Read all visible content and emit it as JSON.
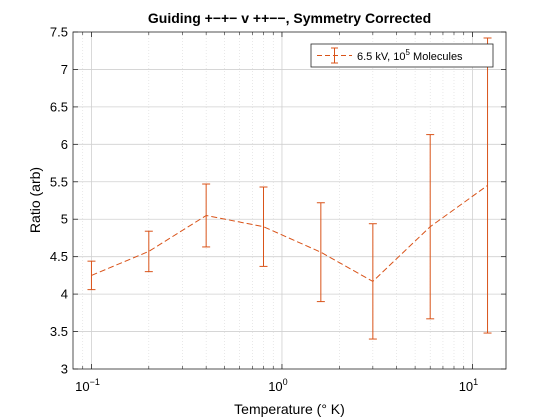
{
  "chart_data": {
    "type": "line",
    "title": "Guiding +−+− v ++−−, Symmetry Corrected",
    "xlabel": "Temperature (° K)",
    "ylabel": "Ratio (arb)",
    "xscale": "log",
    "xlim": [
      0.08,
      15
    ],
    "ylim": [
      3,
      7.5
    ],
    "yticks": [
      "3",
      "3.5",
      "4",
      "4.5",
      "5",
      "5.5",
      "6",
      "6.5",
      "7",
      "7.5"
    ],
    "xtick_labels": [
      {
        "base": "10",
        "exp": "−1",
        "value": 0.1
      },
      {
        "base": "10",
        "exp": "0",
        "value": 1
      },
      {
        "base": "10",
        "exp": "1",
        "value": 10
      }
    ],
    "grid": true,
    "legend_position": "top-right",
    "series": [
      {
        "name": "6.5 kV, 10^5 Molecules",
        "legend_text_main": "6.5 kV, 10",
        "legend_text_sup": "5",
        "legend_text_tail": " Molecules",
        "color": "#d95319",
        "x": [
          0.1,
          0.2,
          0.4,
          0.8,
          1.6,
          3.0,
          6.0,
          12.0
        ],
        "y": [
          4.25,
          4.57,
          5.05,
          4.9,
          4.56,
          4.17,
          4.9,
          5.45
        ],
        "err": [
          0.19,
          0.27,
          0.42,
          0.53,
          0.66,
          0.77,
          1.23,
          1.97
        ]
      }
    ]
  }
}
